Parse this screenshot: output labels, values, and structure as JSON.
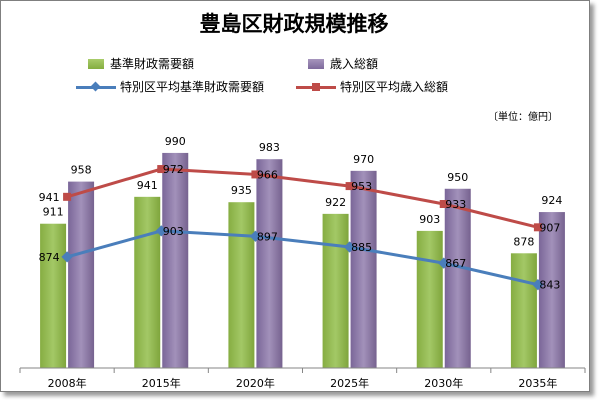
{
  "title": "豊島区財政規模推移",
  "unit_note": "〔単位：億円〕",
  "colors": {
    "bar1": "#92b84c",
    "bar2": "#8b79a8",
    "line1": "#4a7ebb",
    "line2": "#be4b48"
  },
  "chart_data": {
    "type": "bar",
    "categories": [
      "2008年",
      "2015年",
      "2020年",
      "2025年",
      "2030年",
      "2035年"
    ],
    "series": [
      {
        "name": "基準財政需要額",
        "kind": "bar",
        "values": [
          911,
          941,
          935,
          922,
          903,
          878
        ]
      },
      {
        "name": "歳入総額",
        "kind": "bar",
        "values": [
          958,
          990,
          983,
          970,
          950,
          924
        ]
      },
      {
        "name": "特別区平均基準財政需要額",
        "kind": "line",
        "values": [
          874,
          903,
          897,
          885,
          867,
          843
        ]
      },
      {
        "name": "特別区平均歳入総額",
        "kind": "line",
        "values": [
          941,
          972,
          966,
          953,
          933,
          907
        ]
      }
    ],
    "ylim": [
      750,
      1010
    ],
    "grid": false,
    "legend_position": "top"
  }
}
